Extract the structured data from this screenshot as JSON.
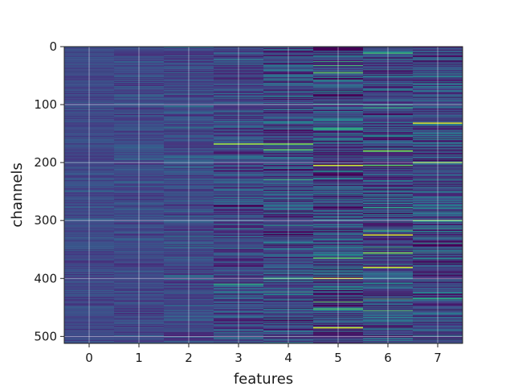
{
  "chart_data": {
    "type": "heatmap",
    "title": "",
    "xlabel": "features",
    "ylabel": "channels",
    "x_categories": [
      0,
      1,
      2,
      3,
      4,
      5,
      6,
      7
    ],
    "x_tick_labels": [
      "0",
      "1",
      "2",
      "3",
      "4",
      "5",
      "6",
      "7"
    ],
    "y_range": [
      0,
      512
    ],
    "y_ticks": [
      0,
      100,
      200,
      300,
      400,
      500
    ],
    "y_tick_labels": [
      "0",
      "100",
      "200",
      "300",
      "400",
      "500"
    ],
    "y_inverted": true,
    "grid": true,
    "colormap": "viridis",
    "rows": 512,
    "columns": 8,
    "column_value_spread": [
      0.1,
      0.12,
      0.16,
      0.22,
      0.28,
      0.34,
      0.3,
      0.3
    ],
    "highlights": [
      {
        "feature": 3,
        "channel": 168,
        "value": 0.9
      },
      {
        "feature": 3,
        "channel": 410,
        "value": 0.7
      },
      {
        "feature": 4,
        "channel": 168,
        "value": 0.85
      },
      {
        "feature": 4,
        "channel": 178,
        "value": 0.8
      },
      {
        "feature": 4,
        "channel": 400,
        "value": 0.75
      },
      {
        "feature": 5,
        "channel": 45,
        "value": 0.8
      },
      {
        "feature": 5,
        "channel": 142,
        "value": 0.75
      },
      {
        "feature": 5,
        "channel": 205,
        "value": 0.95
      },
      {
        "feature": 5,
        "channel": 365,
        "value": 0.8
      },
      {
        "feature": 5,
        "channel": 400,
        "value": 0.92
      },
      {
        "feature": 5,
        "channel": 485,
        "value": 0.95
      },
      {
        "feature": 6,
        "channel": 180,
        "value": 0.85
      },
      {
        "feature": 6,
        "channel": 205,
        "value": 0.8
      },
      {
        "feature": 6,
        "channel": 325,
        "value": 0.95
      },
      {
        "feature": 6,
        "channel": 356,
        "value": 0.85
      },
      {
        "feature": 6,
        "channel": 381,
        "value": 0.95
      },
      {
        "feature": 7,
        "channel": 132,
        "value": 0.95
      },
      {
        "feature": 7,
        "channel": 200,
        "value": 0.85
      },
      {
        "feature": 7,
        "channel": 300,
        "value": 0.8
      },
      {
        "feature": 7,
        "channel": 435,
        "value": 0.7
      }
    ],
    "dark_bands": [
      {
        "feature": 7,
        "channel": 343
      },
      {
        "feature": 5,
        "channel": 5
      },
      {
        "feature": 3,
        "channel": 275
      }
    ]
  }
}
